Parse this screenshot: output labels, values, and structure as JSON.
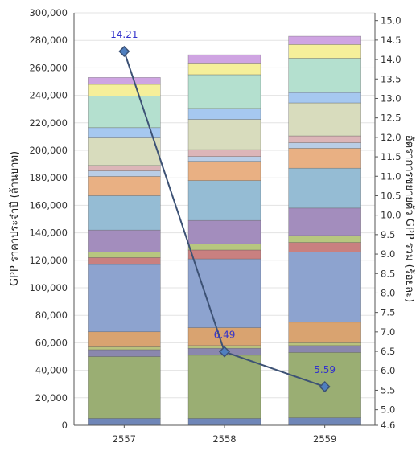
{
  "chart_data": {
    "type": "bar",
    "stacked": true,
    "categories": [
      "2557",
      "2558",
      "2559"
    ],
    "ylabel": "GPP ราคาประจำปี (ล้านบาท)",
    "ylabel_right": "อัตราการขยายตัว GPP รวม (ร้อยละ)",
    "ylim": [
      0,
      300000
    ],
    "y_ticks": [
      0,
      20000,
      40000,
      60000,
      80000,
      100000,
      120000,
      140000,
      160000,
      180000,
      200000,
      220000,
      240000,
      260000,
      280000,
      300000
    ],
    "y2lim": [
      4.6,
      15.2
    ],
    "y2_ticks": [
      4.6,
      5.0,
      5.5,
      6.0,
      6.5,
      7.0,
      7.5,
      8.0,
      8.5,
      9.0,
      9.5,
      10.0,
      10.5,
      11.0,
      11.5,
      12.0,
      12.5,
      13.0,
      13.5,
      14.0,
      14.5,
      15.0
    ],
    "grid": true,
    "series": [
      {
        "values": [
          5000,
          5000,
          5500
        ],
        "color": "#6f86b8"
      },
      {
        "values": [
          45000,
          46000,
          47500
        ],
        "color": "#9aae73"
      },
      {
        "values": [
          5000,
          5000,
          5000
        ],
        "color": "#8a87ad"
      },
      {
        "values": [
          2000,
          2000,
          2000
        ],
        "color": "#b9c27d"
      },
      {
        "values": [
          11000,
          13000,
          15000
        ],
        "color": "#d9a370"
      },
      {
        "values": [
          49000,
          50000,
          51000
        ],
        "color": "#8da3cf"
      },
      {
        "values": [
          5000,
          6500,
          7000
        ],
        "color": "#c98080"
      },
      {
        "values": [
          4000,
          4500,
          5000
        ],
        "color": "#b7c77f"
      },
      {
        "values": [
          16000,
          17000,
          20000
        ],
        "color": "#a38dbd"
      },
      {
        "values": [
          25000,
          29000,
          29000
        ],
        "color": "#95bcd4"
      },
      {
        "values": [
          14000,
          14000,
          14500
        ],
        "color": "#e9b083"
      },
      {
        "values": [
          4000,
          3500,
          4000
        ],
        "color": "#b9cde6"
      },
      {
        "values": [
          4000,
          5000,
          5000
        ],
        "color": "#dcb5b8"
      },
      {
        "values": [
          20000,
          22000,
          24000
        ],
        "color": "#d8dcbd"
      },
      {
        "values": [
          7500,
          8000,
          7500
        ],
        "color": "#a6c8f0"
      },
      {
        "values": [
          23000,
          24500,
          25000
        ],
        "color": "#b4e0cf"
      },
      {
        "values": [
          8500,
          8500,
          10000
        ],
        "color": "#f5ef9a"
      },
      {
        "values": [
          5000,
          6000,
          6000
        ],
        "color": "#cfa4e2"
      }
    ],
    "line": {
      "axis": "right",
      "values": [
        14.21,
        6.49,
        5.59
      ],
      "labels": [
        "14.21",
        "6.49",
        "5.59"
      ],
      "color": "#3d5275"
    }
  }
}
